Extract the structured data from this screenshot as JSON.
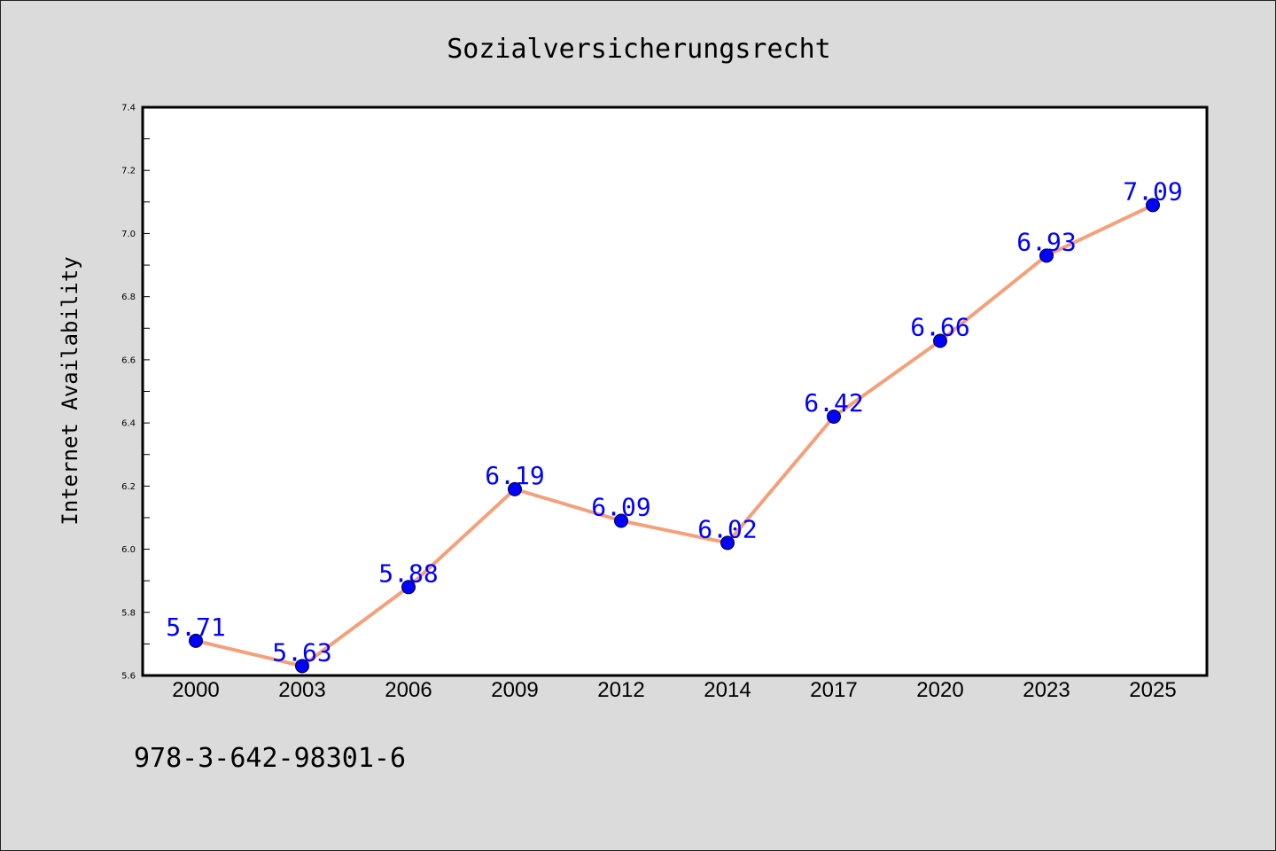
{
  "chart_data": {
    "type": "line",
    "title": "Sozialversicherungsrecht",
    "xlabel": "",
    "ylabel": "Internet Availability",
    "categories": [
      "2000",
      "2003",
      "2006",
      "2009",
      "2012",
      "2014",
      "2017",
      "2020",
      "2023",
      "2025"
    ],
    "series": [
      {
        "values": [
          5.71,
          5.63,
          5.88,
          6.19,
          6.09,
          6.02,
          6.42,
          6.66,
          6.93,
          7.09
        ]
      }
    ],
    "data_labels": [
      "5.71",
      "5.63",
      "5.88",
      "6.19",
      "6.09",
      "6.02",
      "6.42",
      "6.66",
      "6.93",
      "7.09"
    ],
    "ylim": [
      5.6,
      7.4
    ],
    "yticks": [
      "5.6",
      "5.8",
      "6.0",
      "6.2",
      "6.4",
      "6.6",
      "6.8",
      "7.0",
      "7.2",
      "7.4"
    ],
    "grid": false,
    "legend": "none"
  },
  "annotation": {
    "isbn": "978-3-642-98301-6"
  },
  "colors": {
    "background": "#dbdbdb",
    "plot_background": "#ffffff",
    "line": "#f4a07a",
    "marker": "#0000ff",
    "data_label": "#0000ff"
  }
}
